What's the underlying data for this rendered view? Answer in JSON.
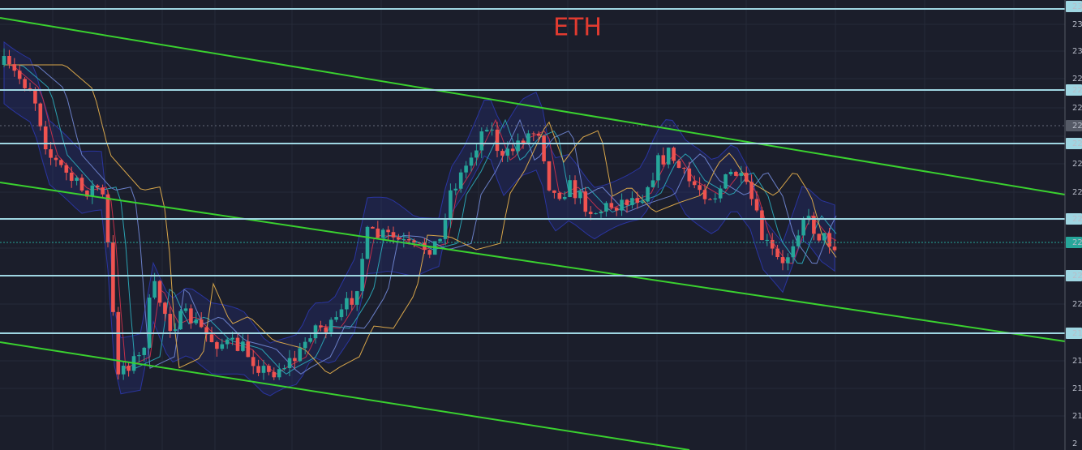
{
  "title": "ETH",
  "price_axis_labels": [
    "23",
    "23",
    "23",
    "22",
    "22",
    "22",
    "22",
    "22",
    "22",
    "22",
    "22",
    "22",
    "22",
    "22",
    "21",
    "21",
    "21",
    "21",
    "2"
  ]
}
